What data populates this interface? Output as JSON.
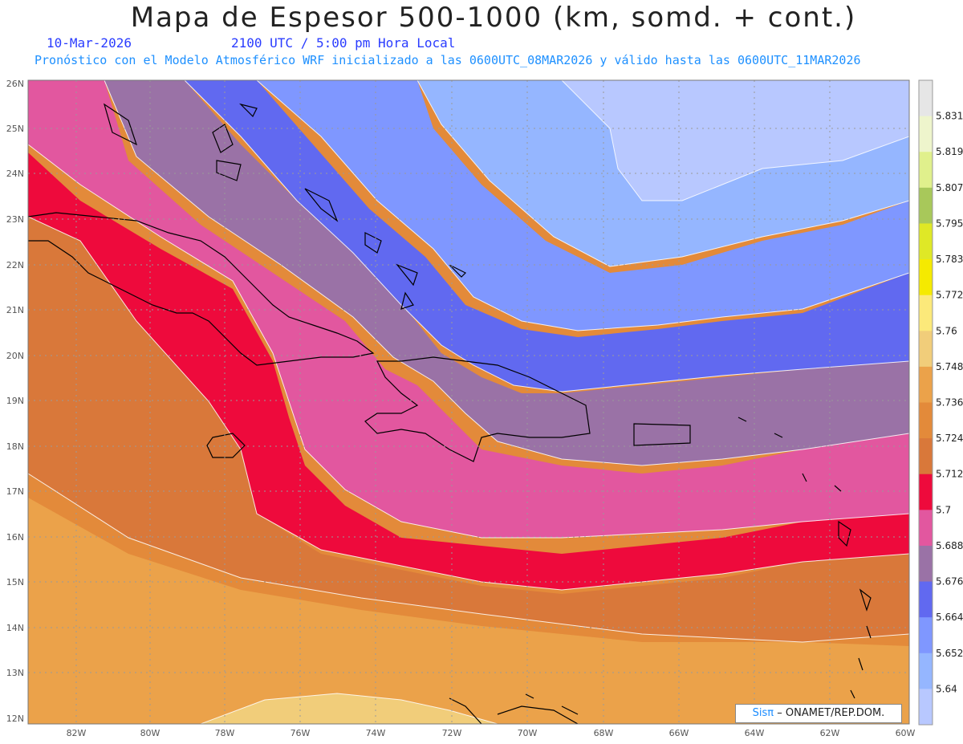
{
  "header": {
    "title": "Mapa de Espesor 500-1000 (km, somd. + cont.)",
    "date": "10-Mar-2026",
    "time": "2100 UTC / 5:00 pm Hora Local",
    "run_info": "Pronóstico con el Modelo Atmosférico WRF inicializado a las 0600UTC_08MAR2026 y válido hasta las  0600UTC_11MAR2026",
    "date_color": "#2a3cff",
    "run_color": "#1e90ff"
  },
  "map": {
    "lat_labels": [
      "26N",
      "25N",
      "24N",
      "23N",
      "22N",
      "21N",
      "20N",
      "19N",
      "18N",
      "17N",
      "16N",
      "15N",
      "14N",
      "13N",
      "12N"
    ],
    "lon_labels": [
      "82W",
      "80W",
      "78W",
      "76W",
      "74W",
      "72W",
      "70W",
      "68W",
      "66W",
      "64W",
      "62W",
      "60W"
    ]
  },
  "colorbar": {
    "labels": [
      "5.831",
      "5.819",
      "5.807",
      "5.795",
      "5.783",
      "5.772",
      "5.76",
      "5.748",
      "5.736",
      "5.724",
      "5.712",
      "5.7",
      "5.688",
      "5.676",
      "5.664",
      "5.652",
      "5.64"
    ],
    "colors": [
      "#e6e6e6",
      "#eef5cc",
      "#e0f08c",
      "#a8c85a",
      "#dfe826",
      "#f5ea00",
      "#fce97a",
      "#f1cd7a",
      "#eba24a",
      "#e38a3a",
      "#d9783a",
      "#ee0a3c",
      "#e2579f",
      "#9a72a6",
      "#6169f0",
      "#7f97ff",
      "#95b6ff",
      "#b8c8ff"
    ]
  },
  "credit": {
    "brand": "Sisπ",
    "text": "– ONAMET/REP.DOM."
  }
}
